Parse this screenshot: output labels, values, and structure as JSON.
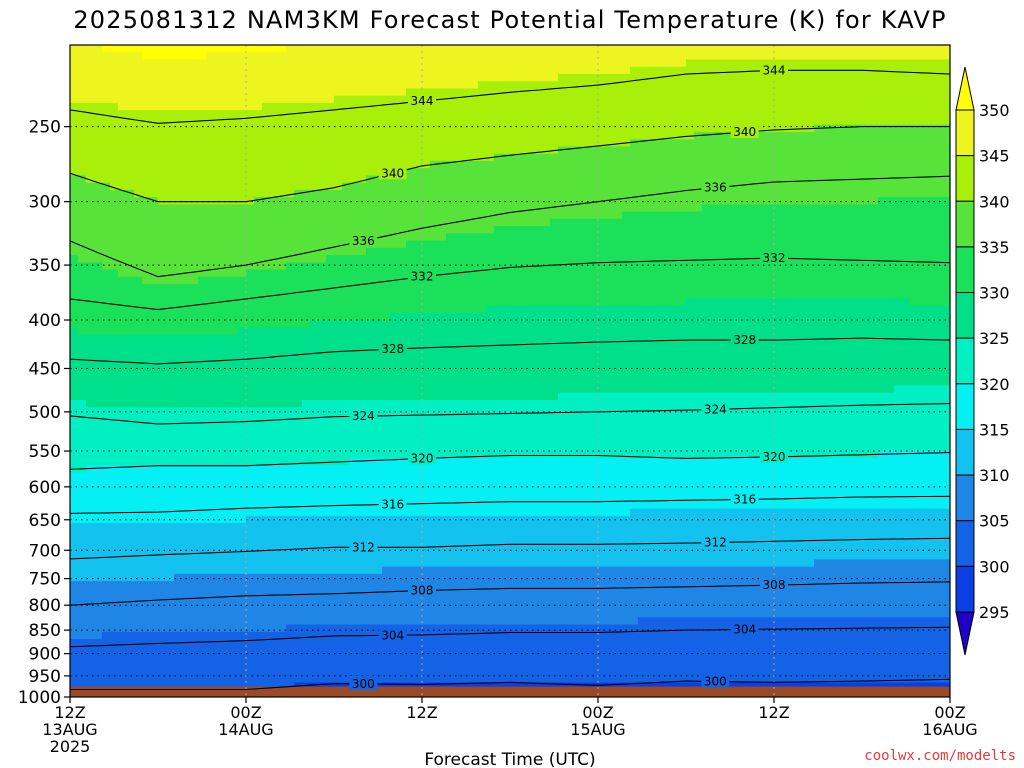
{
  "title": "2025081312 NAM3KM Forecast Potential Temperature (K) for KAVP",
  "xlabel": "Forecast Time (UTC)",
  "credit": "coolwx.com/modelts",
  "chart_data": {
    "type": "heatmap",
    "title": "2025081312 NAM3KM Forecast Potential Temperature (K) for KAVP",
    "xlabel": "Forecast Time (UTC)",
    "ylabel": "",
    "x_ticks": [
      {
        "hour": 0,
        "lines": [
          "12Z",
          "13AUG",
          "2025"
        ]
      },
      {
        "hour": 12,
        "lines": [
          "00Z",
          "14AUG"
        ]
      },
      {
        "hour": 24,
        "lines": [
          "12Z"
        ]
      },
      {
        "hour": 36,
        "lines": [
          "00Z",
          "15AUG"
        ]
      },
      {
        "hour": 48,
        "lines": [
          "12Z"
        ]
      },
      {
        "hour": 60,
        "lines": [
          "00Z",
          "16AUG"
        ]
      }
    ],
    "xlim_hours": [
      0,
      60
    ],
    "y_ticks": [
      250,
      300,
      350,
      400,
      450,
      500,
      550,
      600,
      650,
      700,
      750,
      800,
      850,
      900,
      950,
      1000
    ],
    "ylim": [
      1000,
      200
    ],
    "y_scale": "log-pressure",
    "grid": true,
    "colorbar": {
      "levels": [
        295,
        300,
        305,
        310,
        315,
        320,
        325,
        330,
        335,
        340,
        345,
        350
      ],
      "labels": [
        "295",
        "300",
        "305",
        "310",
        "315",
        "320",
        "325",
        "330",
        "335",
        "340",
        "345",
        "350"
      ],
      "colors": [
        "#1e00c8",
        "#0b3fe6",
        "#1463e6",
        "#1f86e6",
        "#14c2f0",
        "#05f0f5",
        "#00f0c4",
        "#00e08a",
        "#1be05a",
        "#57e33a",
        "#a8f00a",
        "#ecf51f",
        "#ffff00"
      ]
    },
    "contours": [
      {
        "label": 300,
        "points": [
          [
            12,
            982
          ],
          [
            18,
            968
          ],
          [
            24,
            970
          ],
          [
            30,
            965
          ],
          [
            36,
            972
          ],
          [
            42,
            962
          ],
          [
            48,
            965
          ],
          [
            54,
            962
          ],
          [
            60,
            958
          ]
        ]
      },
      {
        "label": 304,
        "points": [
          [
            0,
            885
          ],
          [
            6,
            878
          ],
          [
            12,
            872
          ],
          [
            18,
            862
          ],
          [
            24,
            860
          ],
          [
            30,
            855
          ],
          [
            36,
            855
          ],
          [
            42,
            850
          ],
          [
            48,
            848
          ],
          [
            54,
            846
          ],
          [
            60,
            844
          ]
        ]
      },
      {
        "label": 308,
        "points": [
          [
            0,
            800
          ],
          [
            6,
            790
          ],
          [
            12,
            782
          ],
          [
            18,
            778
          ],
          [
            24,
            772
          ],
          [
            30,
            768
          ],
          [
            36,
            768
          ],
          [
            42,
            765
          ],
          [
            48,
            762
          ],
          [
            54,
            758
          ],
          [
            60,
            756
          ]
        ]
      },
      {
        "label": 312,
        "points": [
          [
            0,
            715
          ],
          [
            6,
            708
          ],
          [
            12,
            702
          ],
          [
            18,
            695
          ],
          [
            24,
            695
          ],
          [
            30,
            690
          ],
          [
            36,
            690
          ],
          [
            42,
            688
          ],
          [
            48,
            685
          ],
          [
            54,
            682
          ],
          [
            60,
            680
          ]
        ]
      },
      {
        "label": 316,
        "points": [
          [
            0,
            640
          ],
          [
            6,
            638
          ],
          [
            12,
            632
          ],
          [
            18,
            628
          ],
          [
            24,
            625
          ],
          [
            30,
            622
          ],
          [
            36,
            622
          ],
          [
            42,
            620
          ],
          [
            48,
            618
          ],
          [
            54,
            615
          ],
          [
            60,
            614
          ]
        ]
      },
      {
        "label": 320,
        "points": [
          [
            0,
            575
          ],
          [
            6,
            570
          ],
          [
            12,
            570
          ],
          [
            18,
            565
          ],
          [
            24,
            560
          ],
          [
            30,
            556
          ],
          [
            36,
            556
          ],
          [
            42,
            560
          ],
          [
            48,
            558
          ],
          [
            54,
            555
          ],
          [
            60,
            552
          ]
        ]
      },
      {
        "label": 324,
        "points": [
          [
            0,
            505
          ],
          [
            6,
            515
          ],
          [
            12,
            512
          ],
          [
            18,
            506
          ],
          [
            24,
            504
          ],
          [
            30,
            502
          ],
          [
            36,
            500
          ],
          [
            42,
            498
          ],
          [
            48,
            495
          ],
          [
            54,
            492
          ],
          [
            60,
            490
          ]
        ]
      },
      {
        "label": 328,
        "points": [
          [
            0,
            440
          ],
          [
            6,
            445
          ],
          [
            12,
            440
          ],
          [
            18,
            432
          ],
          [
            24,
            428
          ],
          [
            30,
            425
          ],
          [
            36,
            422
          ],
          [
            42,
            420
          ],
          [
            48,
            420
          ],
          [
            54,
            418
          ],
          [
            60,
            420
          ]
        ]
      },
      {
        "label": 332,
        "points": [
          [
            0,
            380
          ],
          [
            6,
            390
          ],
          [
            12,
            380
          ],
          [
            18,
            370
          ],
          [
            24,
            360
          ],
          [
            30,
            352
          ],
          [
            36,
            348
          ],
          [
            42,
            346
          ],
          [
            48,
            344
          ],
          [
            54,
            346
          ],
          [
            60,
            348
          ]
        ]
      },
      {
        "label": 336,
        "points": [
          [
            0,
            330
          ],
          [
            6,
            360
          ],
          [
            12,
            350
          ],
          [
            18,
            335
          ],
          [
            24,
            320
          ],
          [
            30,
            308
          ],
          [
            36,
            300
          ],
          [
            42,
            292
          ],
          [
            48,
            286
          ],
          [
            54,
            284
          ],
          [
            60,
            282
          ]
        ]
      },
      {
        "label": 340,
        "points": [
          [
            0,
            280
          ],
          [
            6,
            300
          ],
          [
            12,
            300
          ],
          [
            18,
            290
          ],
          [
            24,
            275
          ],
          [
            30,
            268
          ],
          [
            36,
            262
          ],
          [
            42,
            256
          ],
          [
            48,
            252
          ],
          [
            54,
            250
          ],
          [
            60,
            250
          ]
        ]
      },
      {
        "label": 344,
        "points": [
          [
            0,
            240
          ],
          [
            6,
            248
          ],
          [
            12,
            245
          ],
          [
            18,
            240
          ],
          [
            24,
            235
          ],
          [
            30,
            230
          ],
          [
            36,
            226
          ],
          [
            42,
            220
          ],
          [
            48,
            218
          ],
          [
            54,
            218
          ],
          [
            60,
            220
          ]
        ]
      }
    ],
    "surface": {
      "pressure": 975,
      "color": "#9a4a27"
    }
  }
}
